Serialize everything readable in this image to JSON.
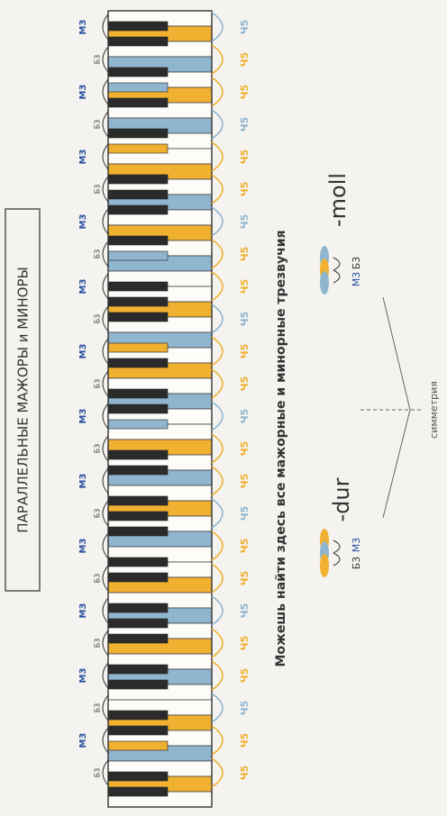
{
  "title": "ПАРАЛЛЕЛЬНЫЕ МАЖОРЫ и МИНОРЫ",
  "subtitle": "Можешь найти здесь все мажорные и минорные трезвучия",
  "intervals": {
    "m3": "М3",
    "b3": "Б3",
    "ch5": "Ч5"
  },
  "legend": {
    "major": "-dur",
    "minor": "-moll"
  },
  "symmetry": "симметрия"
}
